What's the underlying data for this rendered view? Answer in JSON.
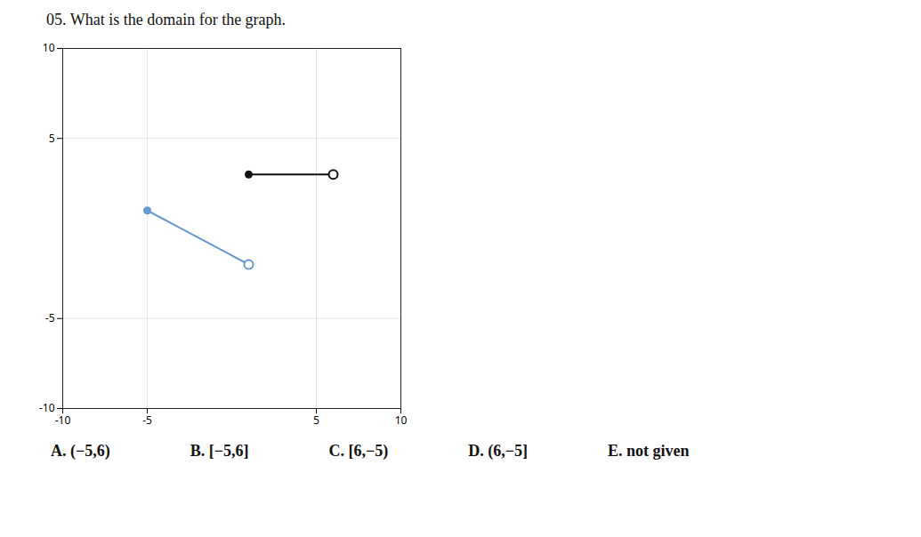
{
  "chart_data": {
    "type": "line",
    "title": "05.  What is the domain for the graph.",
    "xlim": [
      -10,
      10
    ],
    "ylim": [
      -10,
      10
    ],
    "xticks": [
      -10,
      -5,
      5,
      10
    ],
    "yticks": [
      10,
      5,
      -5,
      -10
    ],
    "grid": true,
    "series": [
      {
        "type": "line",
        "color": "#6699cc",
        "x": [
          -5,
          1
        ],
        "values": [
          1,
          -2
        ]
      },
      {
        "type": "scatter",
        "marker": "filled",
        "color": "#6699cc",
        "x": [
          -5
        ],
        "values": [
          1
        ]
      },
      {
        "type": "scatter",
        "marker": "open",
        "color": "#6699cc",
        "x": [
          1
        ],
        "values": [
          -2
        ]
      },
      {
        "type": "line",
        "color": "#111111",
        "x": [
          1,
          6
        ],
        "values": [
          3,
          3
        ]
      },
      {
        "type": "scatter",
        "marker": "filled",
        "color": "#111111",
        "x": [
          1
        ],
        "values": [
          3
        ]
      },
      {
        "type": "scatter",
        "marker": "open",
        "color": "#111111",
        "x": [
          6
        ],
        "values": [
          3
        ]
      }
    ],
    "annotations": [
      "A. (−5,6)",
      "B. [−5,6]",
      "C. [6,−5)",
      "D. (6,−5]",
      "E. not given"
    ]
  }
}
